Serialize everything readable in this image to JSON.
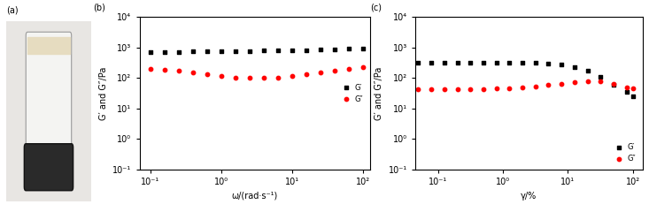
{
  "photo": {
    "label": "(a)"
  },
  "chart_data": [
    {
      "type": "scatter",
      "title": "(b)",
      "x_label": "ω/(rad·s⁻¹)",
      "y_label": "G′ and G″/Pa",
      "log": true,
      "legend": "center right",
      "xlim": [
        0.07,
        125
      ],
      "ylim": [
        0.1,
        10000
      ],
      "xticks": [
        {
          "value": 0.1,
          "label": "10⁻¹"
        },
        {
          "value": 1,
          "label": "10⁰"
        },
        {
          "value": 10,
          "label": "10¹"
        },
        {
          "value": 100,
          "label": "10²"
        }
      ],
      "yticks": [
        {
          "value": 0.1,
          "label": "10⁻¹"
        },
        {
          "value": 1,
          "label": "10⁰"
        },
        {
          "value": 10,
          "label": "10¹"
        },
        {
          "value": 100,
          "label": "10²"
        },
        {
          "value": 1000,
          "label": "10³"
        },
        {
          "value": 10000,
          "label": "10⁴"
        }
      ],
      "x": [
        0.1,
        0.158,
        0.251,
        0.398,
        0.631,
        1,
        1.58,
        2.51,
        3.98,
        6.31,
        10,
        15.8,
        25.1,
        39.8,
        63.1,
        100
      ],
      "series": [
        {
          "name": "G′",
          "color": "#000000",
          "marker": "square",
          "values": [
            700,
            710,
            720,
            730,
            740,
            750,
            760,
            770,
            780,
            795,
            810,
            830,
            850,
            880,
            910,
            950
          ]
        },
        {
          "name": "G″",
          "color": "#ff0000",
          "marker": "circle",
          "values": [
            200,
            185,
            170,
            150,
            130,
            115,
            105,
            100,
            100,
            105,
            115,
            130,
            150,
            170,
            195,
            230
          ]
        }
      ]
    },
    {
      "type": "scatter",
      "title": "(c)",
      "x_label": "γ/%",
      "y_label": "G′ and G″/Pa",
      "log": true,
      "legend": "lower right",
      "xlim": [
        0.045,
        140
      ],
      "ylim": [
        0.1,
        10000
      ],
      "xticks": [
        {
          "value": 0.1,
          "label": "10⁻¹"
        },
        {
          "value": 1,
          "label": "10⁰"
        },
        {
          "value": 10,
          "label": "10¹"
        },
        {
          "value": 100,
          "label": "10²"
        }
      ],
      "yticks": [
        {
          "value": 0.1,
          "label": "10⁻¹"
        },
        {
          "value": 1,
          "label": "10⁰"
        },
        {
          "value": 10,
          "label": "10¹"
        },
        {
          "value": 100,
          "label": "10²"
        },
        {
          "value": 1000,
          "label": "10³"
        },
        {
          "value": 10000,
          "label": "10⁴"
        }
      ],
      "x": [
        0.05,
        0.08,
        0.126,
        0.2,
        0.316,
        0.5,
        0.8,
        1.26,
        2,
        3.16,
        5,
        8,
        12.6,
        20,
        31.6,
        50,
        80,
        100
      ],
      "series": [
        {
          "name": "G′",
          "color": "#000000",
          "marker": "square",
          "values": [
            320,
            320,
            320,
            320,
            320,
            320,
            320,
            320,
            318,
            315,
            305,
            280,
            230,
            170,
            110,
            60,
            35,
            25
          ]
        },
        {
          "name": "G″",
          "color": "#ff0000",
          "marker": "circle",
          "values": [
            42,
            42,
            42,
            43,
            43,
            44,
            45,
            46,
            48,
            52,
            58,
            66,
            75,
            80,
            78,
            62,
            50,
            45
          ]
        }
      ]
    }
  ]
}
